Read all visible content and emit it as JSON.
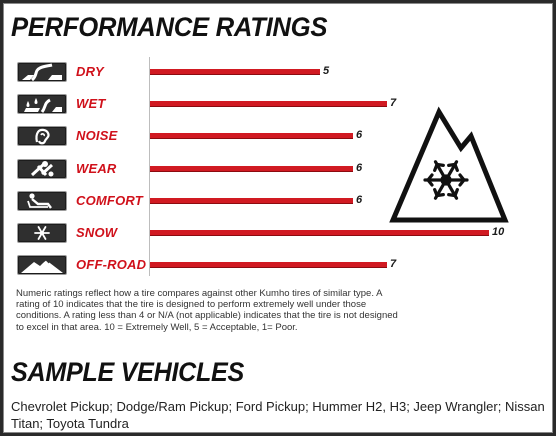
{
  "performance": {
    "title": "PERFORMANCE RATINGS",
    "footnote": "Numeric ratings reflect how a tire compares against other Kumho tires of similar type. A rating of 10 indicates that the tire is designed to perform extremely well under those conditions. A rating less than 4 or N/A (not applicable) indicates that the tire is not designed to excel in that area. 10 = Extremely Well, 5 = Acceptable, 1= Poor."
  },
  "chart_data": {
    "type": "bar",
    "orientation": "horizontal",
    "categories": [
      "DRY",
      "WET",
      "NOISE",
      "WEAR",
      "COMFORT",
      "SNOW",
      "OFF-ROAD"
    ],
    "values": [
      5,
      7,
      6,
      6,
      6,
      10,
      7
    ],
    "xlim": [
      0,
      10
    ],
    "labels": [
      "5",
      "7",
      "6",
      "6",
      "6",
      "10",
      "7"
    ],
    "icons": [
      "dry-road-icon",
      "wet-road-icon",
      "ear-icon",
      "wrench-icon",
      "reclining-person-icon",
      "snowflake-icon",
      "off-road-mountain-icon"
    ],
    "bar_color": "#d11a22",
    "label_color": "#d0111b",
    "grid": false,
    "legend": "none"
  },
  "badge": {
    "icon": "three-peak-mountain-snowflake-icon"
  },
  "vehicles": {
    "title": "SAMPLE VEHICLES",
    "text": "Chevrolet Pickup; Dodge/Ram Pickup; Ford Pickup; Hummer H2, H3; Jeep Wrangler; Nissan Titan; Toyota Tundra"
  }
}
